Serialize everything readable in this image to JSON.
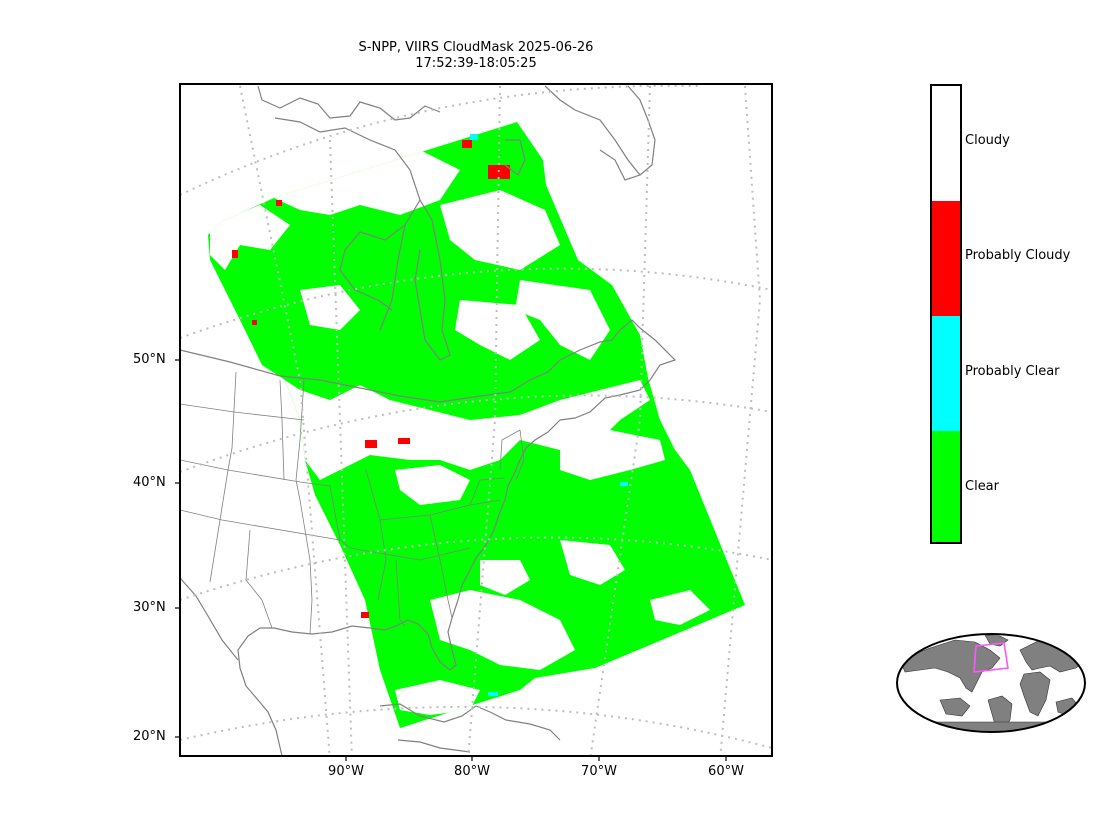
{
  "title": {
    "line1": "S-NPP, VIIRS CloudMask 2025-06-26",
    "line2": "17:52:39-18:05:25"
  },
  "map": {
    "lat_labels": [
      "50°N",
      "40°N",
      "30°N",
      "20°N"
    ],
    "lon_labels": [
      "90°W",
      "80°W",
      "70°W",
      "60°W"
    ]
  },
  "legend": {
    "categories": [
      {
        "label": "Cloudy",
        "color": "#ffffff"
      },
      {
        "label": "Probably Cloudy",
        "color": "#ff0000"
      },
      {
        "label": "Probably Clear",
        "color": "#00ffff"
      },
      {
        "label": "Clear",
        "color": "#00ff00"
      }
    ]
  },
  "colors": {
    "clear": "#00ff00",
    "probably_clear": "#00ffff",
    "probably_cloudy": "#ff0000",
    "cloudy": "#ffffff",
    "coastline": "#808080",
    "gridline": "#bdbdbd",
    "globe_land": "#808080",
    "globe_box": "#ff55ff"
  }
}
